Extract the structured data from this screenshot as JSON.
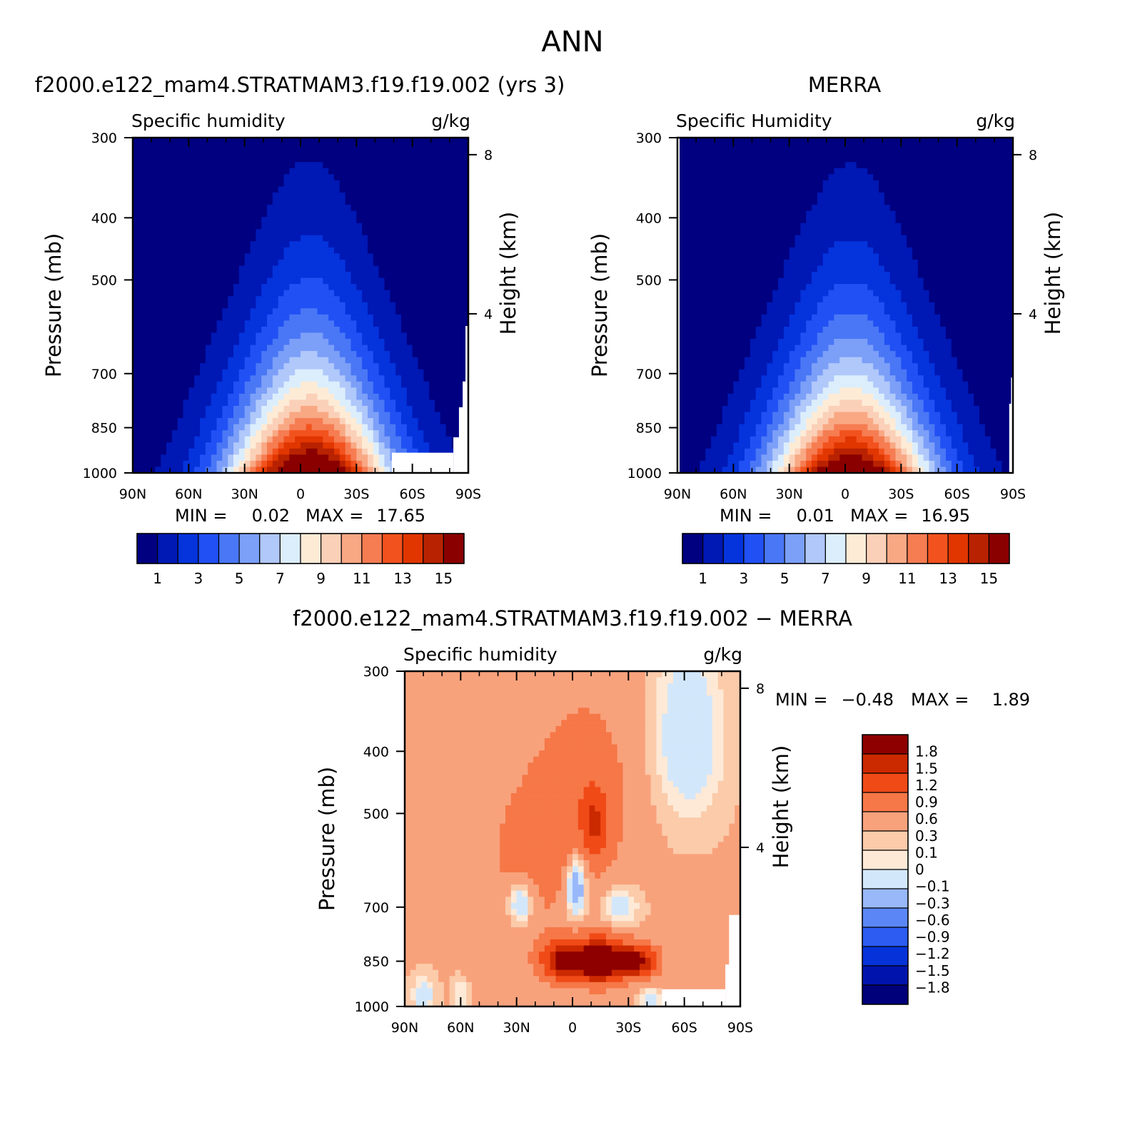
{
  "figure": {
    "title": "ANN"
  },
  "chart_data": [
    {
      "type": "heatmap",
      "title": "f2000.e122_mam4.STRATMAM3.f19.f19.002 (yrs 3)",
      "subtitle_left": "Specific humidity",
      "subtitle_right": "g/kg",
      "xlabel": "",
      "ylabel": "Pressure (mb)",
      "ylabel_right": "Height (km)",
      "x_ticks": [
        "90N",
        "60N",
        "30N",
        "0",
        "30S",
        "60S",
        "90S"
      ],
      "y_ticks": [
        "300",
        "400",
        "500",
        "700",
        "850",
        "1000"
      ],
      "y_right_ticks": [
        "8",
        "4"
      ],
      "min_label": "MIN =",
      "min_value": "0.02",
      "max_label": "MAX =",
      "max_value": "17.65",
      "contour_levels": [
        1,
        2,
        3,
        4,
        5,
        6,
        7,
        8,
        9,
        10,
        11,
        12,
        13,
        14,
        15
      ],
      "colorbar_labels": [
        "1",
        "3",
        "5",
        "7",
        "9",
        "11",
        "13",
        "15"
      ],
      "peak": {
        "lat": -5,
        "pressure": 1000,
        "value": 17.65
      }
    },
    {
      "type": "heatmap",
      "title": "MERRA",
      "subtitle_left": "Specific Humidity",
      "subtitle_right": "g/kg",
      "xlabel": "",
      "ylabel": "Pressure (mb)",
      "ylabel_right": "Height (km)",
      "x_ticks": [
        "90N",
        "60N",
        "30N",
        "0",
        "30S",
        "60S",
        "90S"
      ],
      "y_ticks": [
        "300",
        "400",
        "500",
        "700",
        "850",
        "1000"
      ],
      "y_right_ticks": [
        "8",
        "4"
      ],
      "min_label": "MIN =",
      "min_value": "0.01",
      "max_label": "MAX =",
      "max_value": "16.95",
      "contour_levels": [
        1,
        2,
        3,
        4,
        5,
        6,
        7,
        8,
        9,
        10,
        11,
        12,
        13,
        14,
        15
      ],
      "colorbar_labels": [
        "1",
        "3",
        "5",
        "7",
        "9",
        "11",
        "13",
        "15"
      ],
      "peak": {
        "lat": -3,
        "pressure": 1000,
        "value": 16.95
      }
    },
    {
      "type": "heatmap",
      "title": "f2000.e122_mam4.STRATMAM3.f19.f19.002 − MERRA",
      "subtitle_left": "Specific humidity",
      "subtitle_right": "g/kg",
      "xlabel": "",
      "ylabel": "Pressure (mb)",
      "ylabel_right": "Height (km)",
      "x_ticks": [
        "90N",
        "60N",
        "30N",
        "0",
        "30S",
        "60S",
        "90S"
      ],
      "y_ticks": [
        "300",
        "400",
        "500",
        "700",
        "850",
        "1000"
      ],
      "y_right_ticks": [
        "8",
        "4"
      ],
      "min_label": "MIN =",
      "min_value": "−0.48",
      "max_label": "MAX =",
      "max_value": "1.89",
      "contour_levels": [
        -1.8,
        -1.5,
        -1.2,
        -0.9,
        -0.6,
        -0.3,
        -0.1,
        0,
        0.1,
        0.3,
        0.6,
        0.9,
        1.2,
        1.5,
        1.8
      ],
      "colorbar_labels": [
        "1.8",
        "1.5",
        "1.2",
        "0.9",
        "0.6",
        "0.3",
        "0.1",
        "0",
        "−0.1",
        "−0.3",
        "−0.6",
        "−0.9",
        "−1.2",
        "−1.5",
        "−1.8"
      ],
      "features": [
        {
          "lat": -15,
          "pressure": 850,
          "value": 1.89
        },
        {
          "lat": -12,
          "pressure": 520,
          "value": 0.6
        },
        {
          "lat": -2,
          "pressure": 630,
          "value": -0.48
        },
        {
          "lat": 28,
          "pressure": 700,
          "value": -0.3
        }
      ]
    }
  ],
  "colors": {
    "sequential": [
      "#000080",
      "#0018b4",
      "#0533dc",
      "#2150f4",
      "#4a77f5",
      "#7c9ff8",
      "#b0c8fa",
      "#dceefc",
      "#fdebd6",
      "#fbd0b8",
      "#f9a884",
      "#f67c52",
      "#f2521e",
      "#e13600",
      "#b82200",
      "#8a0000"
    ],
    "diverging": [
      "#00007a",
      "#0014ad",
      "#0533d9",
      "#2c5cf1",
      "#5b87f6",
      "#98b8fa",
      "#d3e7fb",
      "#fde9d6",
      "#fbcbaa",
      "#f8a27c",
      "#f67747",
      "#f04a17",
      "#cb2900",
      "#8e0000"
    ]
  }
}
